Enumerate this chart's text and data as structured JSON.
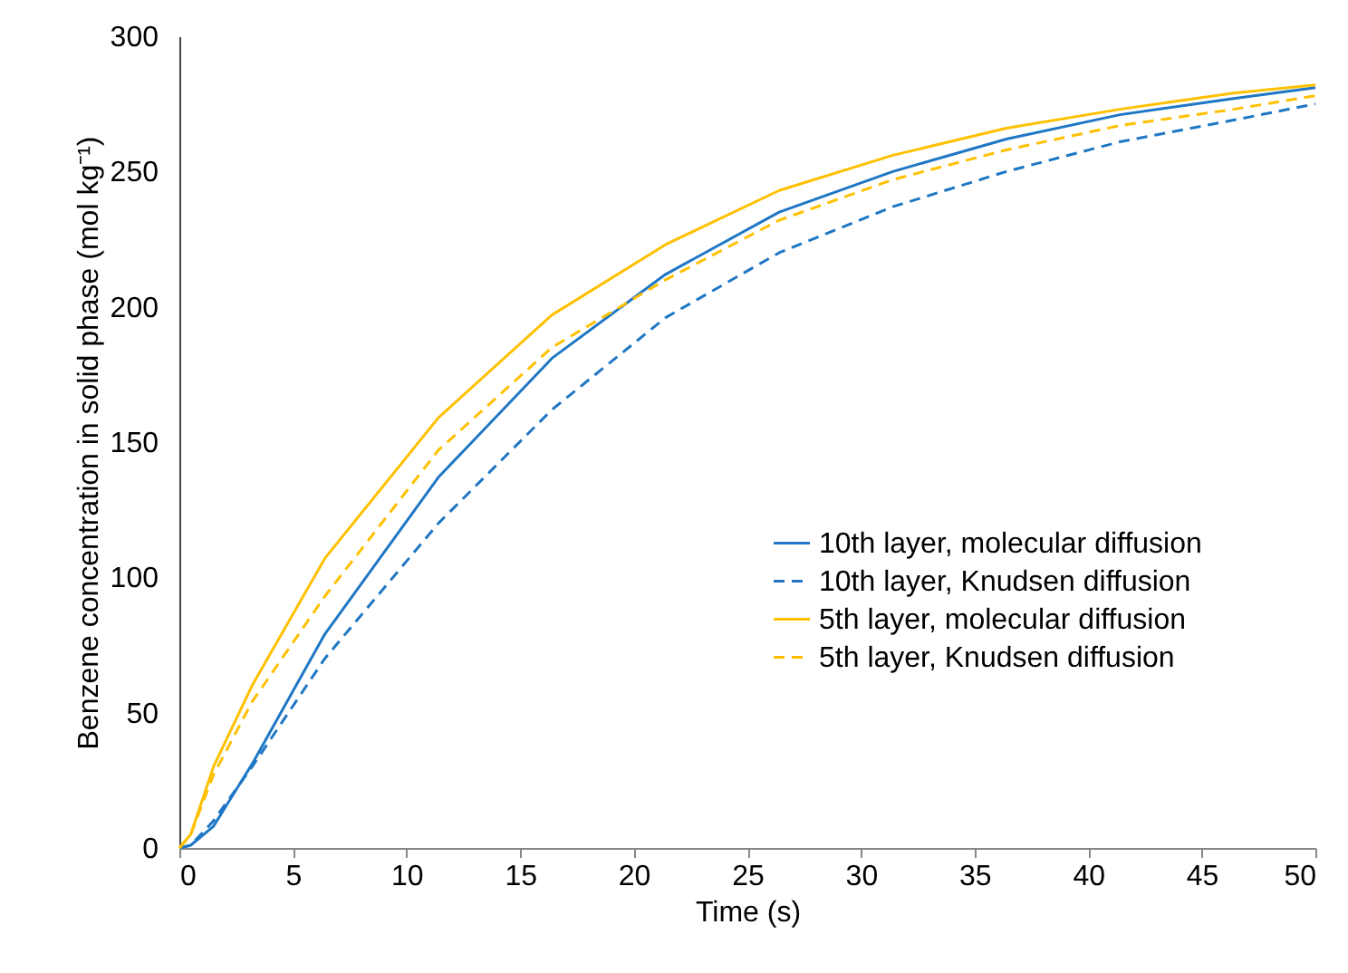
{
  "chart_data": {
    "type": "line",
    "xlabel": "Time (s)",
    "ylabel": "Benzene concentration in solid phase (mol kg⁻¹)",
    "xlim": [
      0,
      50
    ],
    "xticks": [
      0,
      5,
      10,
      15,
      20,
      25,
      30,
      35,
      40,
      45,
      50
    ],
    "ylim": [
      0,
      300
    ],
    "yticks": [
      0,
      50,
      100,
      150,
      200,
      250,
      300
    ],
    "grid": false,
    "legend": "right",
    "marker": "none",
    "x": [
      0,
      0.5,
      1.5,
      3.2,
      6.4,
      11.4,
      16.4,
      21.4,
      26.4,
      31.4,
      36.4,
      41.4,
      46.4,
      50
    ],
    "series": [
      {
        "name": "10th layer, molecular diffusion",
        "color": "#1f77c4",
        "line_style": "solid",
        "values": [
          0,
          1,
          8,
          31,
          79,
          137,
          181,
          212,
          235,
          250,
          262,
          271,
          277,
          281
        ]
      },
      {
        "name": "10th layer, Knudsen diffusion",
        "color": "#1f77c4",
        "line_style": "dashed",
        "values": [
          0,
          1,
          10,
          30,
          70,
          120,
          162,
          196,
          220,
          237,
          250,
          261,
          269,
          275
        ]
      },
      {
        "name": "5th layer, molecular diffusion",
        "color": "#ffc000",
        "line_style": "solid",
        "values": [
          0,
          5,
          30,
          60,
          107,
          159,
          197,
          223,
          243,
          256,
          266,
          273,
          279,
          282
        ]
      },
      {
        "name": "5th layer, Knudsen diffusion",
        "color": "#ffc000",
        "line_style": "dashed",
        "values": [
          0,
          5,
          27,
          54,
          93,
          147,
          185,
          210,
          232,
          247,
          258,
          267,
          273,
          278
        ]
      }
    ]
  }
}
